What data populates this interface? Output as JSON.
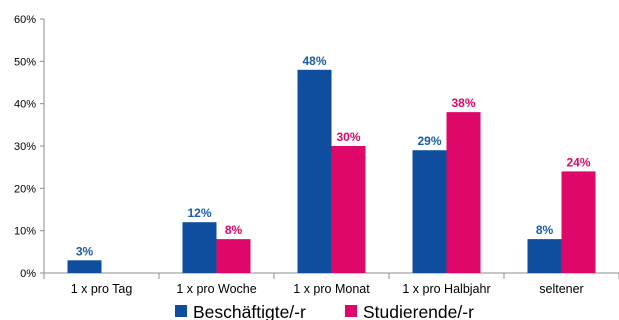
{
  "chart_data": {
    "type": "bar",
    "title": "",
    "xlabel": "",
    "ylabel": "",
    "categories": [
      "1 x pro Tag",
      "1 x pro Woche",
      "1 x pro Monat",
      "1 x pro Halbjahr",
      "seltener"
    ],
    "series": [
      {
        "name": "Beschäftigte/-r",
        "color": "#0f4e9e",
        "label_color": "#1a5ea8",
        "values": [
          3,
          12,
          48,
          29,
          8
        ],
        "labels": [
          "3%",
          "12%",
          "48%",
          "29%",
          "8%"
        ]
      },
      {
        "name": "Studierende/-r",
        "color": "#e0076b",
        "label_color": "#e0076b",
        "values": [
          null,
          8,
          30,
          38,
          24
        ],
        "labels": [
          "",
          "8%",
          "30%",
          "38%",
          "24%"
        ]
      }
    ],
    "ylim": [
      0,
      60
    ],
    "yticks": [
      0,
      10,
      20,
      30,
      40,
      50,
      60
    ],
    "ytick_labels": [
      "0%",
      "10%",
      "20%",
      "30%",
      "40%",
      "50%",
      "60%"
    ],
    "grid": false,
    "legend_position": "bottom"
  }
}
